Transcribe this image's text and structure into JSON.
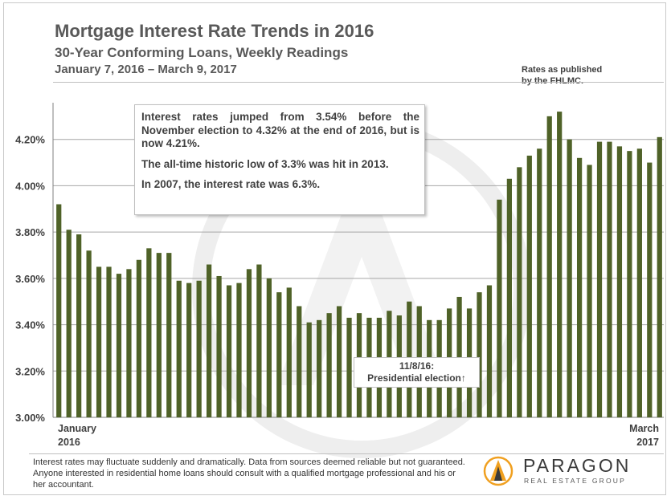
{
  "header": {
    "title": "Mortgage Interest Rate Trends in 2016",
    "subtitle": "30-Year Conforming Loans, Weekly Readings",
    "date_range": "January 7, 2016 – March 9, 2017",
    "source_line1": "Rates as published",
    "source_line2": "by the FHLMC."
  },
  "annotation": {
    "line1": "Interest rates jumped from 3.54% before the November election to 4.32% at the end of 2016, but is now 4.21%.",
    "line2": "The all-time historic low of 3.3% was hit in 2013.",
    "line3": "In 2007, the interest rate was 6.3%."
  },
  "election_label": {
    "date": "11/8/16:",
    "text": "Presidential election↑"
  },
  "footer": {
    "disclaimer": "Interest rates may fluctuate suddenly and dramatically. Data from sources deemed reliable but not guaranteed. Anyone interested in residential home loans should consult with a qualified mortgage professional and his or her accountant.",
    "logo_name": "PARAGON",
    "logo_sub": "REAL ESTATE GROUP"
  },
  "chart_data": {
    "type": "bar",
    "title": "Mortgage Interest Rate Trends in 2016",
    "ylabel": "",
    "xlabel": "",
    "ylim": [
      3.0,
      4.4
    ],
    "yticks": [
      3.0,
      3.2,
      3.4,
      3.6,
      3.8,
      4.0,
      4.2
    ],
    "ytick_labels": [
      "3.00%",
      "3.20%",
      "3.40%",
      "3.60%",
      "3.80%",
      "4.00%",
      "4.20%"
    ],
    "x_start_label": [
      "January",
      "2016"
    ],
    "x_end_label": [
      "March",
      "2017"
    ],
    "grid": "horizontal",
    "bar_color": "#4f6228",
    "values": [
      3.92,
      3.81,
      3.79,
      3.72,
      3.65,
      3.65,
      3.62,
      3.64,
      3.68,
      3.73,
      3.71,
      3.71,
      3.59,
      3.58,
      3.59,
      3.66,
      3.61,
      3.57,
      3.58,
      3.64,
      3.66,
      3.6,
      3.54,
      3.56,
      3.48,
      3.41,
      3.42,
      3.45,
      3.48,
      3.43,
      3.45,
      3.43,
      3.43,
      3.46,
      3.44,
      3.5,
      3.48,
      3.42,
      3.42,
      3.47,
      3.52,
      3.47,
      3.54,
      3.57,
      3.94,
      4.03,
      4.08,
      4.13,
      4.16,
      4.3,
      4.32,
      4.2,
      4.12,
      4.09,
      4.19,
      4.19,
      4.17,
      4.15,
      4.16,
      4.1,
      4.21
    ]
  }
}
